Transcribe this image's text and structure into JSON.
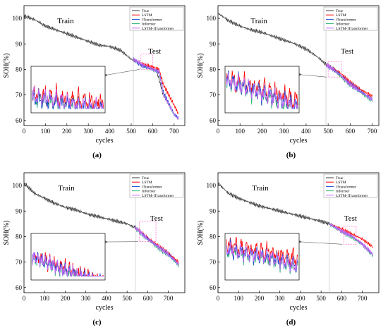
{
  "figure": {
    "colors": {
      "True": "#3a3a3a",
      "LSTM": "#ff0000",
      "iTransformer": "#1f4bd6",
      "Informer": "#22b573",
      "LSTM-iTransformer": "#cc66ff"
    }
  },
  "chart_data": [
    {
      "type": "line",
      "panel_label": "(a)",
      "xlabel": "cycles",
      "ylabel": "SOH(%)",
      "xlim": [
        0,
        750
      ],
      "ylim": [
        58,
        105
      ],
      "xticks": [
        0,
        100,
        200,
        300,
        400,
        500,
        600,
        700
      ],
      "yticks": [
        60,
        70,
        80,
        90,
        100
      ],
      "region_labels": {
        "train": "Train",
        "test": "Test"
      },
      "split_x": 510,
      "legend": [
        "True",
        "LSTM",
        "iTransformer",
        "Informer",
        "LSTM-iTransformer"
      ],
      "legend_position": "top-right",
      "true_curve": [
        [
          0,
          101
        ],
        [
          50,
          99.5
        ],
        [
          100,
          97
        ],
        [
          150,
          95.5
        ],
        [
          200,
          94
        ],
        [
          250,
          92.5
        ],
        [
          300,
          91
        ],
        [
          350,
          89.5
        ],
        [
          400,
          89
        ],
        [
          450,
          87.5
        ],
        [
          500,
          84
        ],
        [
          550,
          82
        ],
        [
          600,
          80
        ],
        [
          620,
          79
        ],
        [
          650,
          70
        ],
        [
          700,
          62.5
        ],
        [
          720,
          60.5
        ]
      ],
      "predictions": {
        "LSTM": [
          [
            510,
            84
          ],
          [
            550,
            82
          ],
          [
            600,
            81
          ],
          [
            630,
            80
          ],
          [
            650,
            74
          ],
          [
            700,
            66
          ],
          [
            720,
            62.5
          ]
        ],
        "iTransformer": [
          [
            510,
            84
          ],
          [
            550,
            81.5
          ],
          [
            600,
            80
          ],
          [
            630,
            79
          ],
          [
            650,
            71
          ],
          [
            700,
            62.5
          ],
          [
            720,
            61
          ]
        ],
        "Informer": [
          [
            510,
            84
          ],
          [
            550,
            81.5
          ],
          [
            600,
            79.8
          ],
          [
            630,
            78.5
          ],
          [
            650,
            70.5
          ],
          [
            700,
            62
          ],
          [
            720,
            60.8
          ]
        ],
        "LSTM-iTransformer": [
          [
            510,
            84
          ],
          [
            550,
            82
          ],
          [
            600,
            80
          ],
          [
            630,
            79
          ],
          [
            650,
            70.2
          ],
          [
            700,
            62.4
          ],
          [
            720,
            60.6
          ]
        ]
      },
      "inset": {
        "zoom_x": [
          545,
          600
        ],
        "zoom_y": [
          80,
          86
        ]
      }
    },
    {
      "type": "line",
      "panel_label": "(b)",
      "xlabel": "cycles",
      "ylabel": "SOH(%)",
      "xlim": [
        0,
        730
      ],
      "ylim": [
        58,
        105
      ],
      "xticks": [
        0,
        100,
        200,
        300,
        400,
        500,
        600,
        700
      ],
      "yticks": [
        60,
        70,
        80,
        90,
        100
      ],
      "region_labels": {
        "train": "Train",
        "test": "Test"
      },
      "split_x": 490,
      "legend": [
        "True",
        "LSTM",
        "iTransformer",
        "Informer",
        "LSTM-iTransformer"
      ],
      "legend_position": "top-right",
      "true_curve": [
        [
          0,
          102
        ],
        [
          50,
          99
        ],
        [
          100,
          97
        ],
        [
          150,
          95.5
        ],
        [
          200,
          94.5
        ],
        [
          250,
          93
        ],
        [
          300,
          91.5
        ],
        [
          350,
          90
        ],
        [
          400,
          88
        ],
        [
          450,
          85
        ],
        [
          490,
          82
        ],
        [
          550,
          78
        ],
        [
          600,
          74
        ],
        [
          650,
          71
        ],
        [
          700,
          68
        ]
      ],
      "predictions": {
        "LSTM": [
          [
            490,
            82
          ],
          [
            550,
            79
          ],
          [
            600,
            75
          ],
          [
            650,
            72
          ],
          [
            700,
            69.5
          ]
        ],
        "iTransformer": [
          [
            490,
            82
          ],
          [
            550,
            78.3
          ],
          [
            600,
            74.3
          ],
          [
            650,
            71.3
          ],
          [
            700,
            68.3
          ]
        ],
        "Informer": [
          [
            490,
            82
          ],
          [
            550,
            77.8
          ],
          [
            600,
            73.8
          ],
          [
            650,
            70.8
          ],
          [
            700,
            67.8
          ]
        ],
        "LSTM-iTransformer": [
          [
            490,
            82
          ],
          [
            550,
            78.1
          ],
          [
            600,
            74.1
          ],
          [
            650,
            71.1
          ],
          [
            700,
            68.1
          ]
        ]
      },
      "inset": {
        "zoom_x": [
          500,
          560
        ],
        "zoom_y": [
          77,
          83
        ]
      }
    },
    {
      "type": "line",
      "panel_label": "(c)",
      "xlabel": "cycles",
      "ylabel": "SOH(%)",
      "xlim": [
        0,
        780
      ],
      "ylim": [
        58,
        105
      ],
      "xticks": [
        0,
        100,
        200,
        300,
        400,
        500,
        600,
        700
      ],
      "yticks": [
        60,
        70,
        80,
        90,
        100
      ],
      "region_labels": {
        "train": "Train",
        "test": "Test"
      },
      "split_x": 540,
      "legend": [
        "True",
        "LSTM",
        "iTransformer",
        "Informer",
        "LSTM-iTransformer"
      ],
      "legend_position": "top-right",
      "true_curve": [
        [
          0,
          101
        ],
        [
          50,
          97
        ],
        [
          100,
          95
        ],
        [
          150,
          93
        ],
        [
          200,
          91.5
        ],
        [
          250,
          90.5
        ],
        [
          300,
          89
        ],
        [
          350,
          88
        ],
        [
          400,
          87
        ],
        [
          450,
          86
        ],
        [
          500,
          85
        ],
        [
          540,
          83.5
        ],
        [
          600,
          79
        ],
        [
          650,
          76
        ],
        [
          700,
          73
        ],
        [
          750,
          69
        ]
      ],
      "predictions": {
        "LSTM": [
          [
            540,
            83.5
          ],
          [
            600,
            79.5
          ],
          [
            650,
            76.5
          ],
          [
            700,
            73.5
          ],
          [
            750,
            70
          ]
        ],
        "iTransformer": [
          [
            540,
            83.5
          ],
          [
            600,
            79.2
          ],
          [
            650,
            76.2
          ],
          [
            700,
            73.2
          ],
          [
            750,
            69.3
          ]
        ],
        "Informer": [
          [
            540,
            83.5
          ],
          [
            600,
            78.7
          ],
          [
            650,
            75.7
          ],
          [
            700,
            72.7
          ],
          [
            750,
            68.7
          ]
        ],
        "LSTM-iTransformer": [
          [
            540,
            83.5
          ],
          [
            600,
            79
          ],
          [
            650,
            76
          ],
          [
            700,
            73
          ],
          [
            750,
            69.1
          ]
        ]
      },
      "inset": {
        "zoom_x": [
          560,
          640
        ],
        "zoom_y": [
          78,
          86
        ]
      }
    },
    {
      "type": "line",
      "panel_label": "(d)",
      "xlabel": "cycles",
      "ylabel": "SOH(%)",
      "xlim": [
        0,
        780
      ],
      "ylim": [
        58,
        105
      ],
      "xticks": [
        0,
        100,
        200,
        300,
        400,
        500,
        600,
        700
      ],
      "yticks": [
        60,
        70,
        80,
        90,
        100
      ],
      "region_labels": {
        "train": "Train",
        "test": "Test"
      },
      "split_x": 540,
      "legend": [
        "True",
        "LSTM",
        "iTransformer",
        "Informer",
        "LSTM-iTransformer"
      ],
      "legend_position": "top-right",
      "true_curve": [
        [
          0,
          101
        ],
        [
          50,
          97
        ],
        [
          100,
          95
        ],
        [
          150,
          93.5
        ],
        [
          200,
          92
        ],
        [
          250,
          91
        ],
        [
          300,
          90
        ],
        [
          350,
          89
        ],
        [
          400,
          88
        ],
        [
          450,
          87
        ],
        [
          500,
          86
        ],
        [
          540,
          85
        ],
        [
          600,
          82
        ],
        [
          650,
          80
        ],
        [
          700,
          77
        ],
        [
          750,
          73
        ]
      ],
      "predictions": {
        "LSTM": [
          [
            540,
            85
          ],
          [
            600,
            83
          ],
          [
            650,
            81
          ],
          [
            700,
            79
          ],
          [
            750,
            76
          ]
        ],
        "iTransformer": [
          [
            540,
            85
          ],
          [
            600,
            82.2
          ],
          [
            650,
            80.2
          ],
          [
            700,
            77.2
          ],
          [
            750,
            73.3
          ]
        ],
        "Informer": [
          [
            540,
            85
          ],
          [
            600,
            81.8
          ],
          [
            650,
            79.8
          ],
          [
            700,
            76.8
          ],
          [
            750,
            72.8
          ]
        ],
        "LSTM-iTransformer": [
          [
            540,
            85
          ],
          [
            600,
            82.1
          ],
          [
            650,
            80.1
          ],
          [
            700,
            77.1
          ],
          [
            750,
            73.1
          ]
        ]
      },
      "inset": {
        "zoom_x": [
          610,
          670
        ],
        "zoom_y": [
          77,
          84
        ]
      }
    }
  ]
}
